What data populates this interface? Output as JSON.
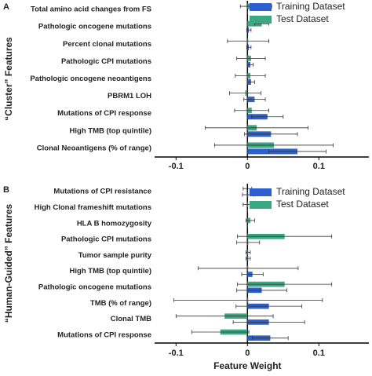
{
  "chart_data": [
    {
      "type": "bar",
      "orientation": "horizontal",
      "panel": "A",
      "ylabel": "“Cluster” Features",
      "categories": [
        "Total amino acid changes from FS",
        "Pathologic oncogene mutations",
        "Percent clonal mutations",
        "Pathologic CPI mutations",
        "Pathologic oncogene neoantigens",
        "PBRM1 LOH",
        "Mutations of CPI response",
        "High TMB (top quintile)",
        "Clonal Neoantigens (% of range)"
      ],
      "series": [
        {
          "name": "Training Dataset",
          "color": "#2c5fd0",
          "values": [
            0,
            0.002,
            0.002,
            0.004,
            0.005,
            0.01,
            0.028,
            0.033,
            0.07
          ],
          "errors": [
            0,
            0.003,
            0.003,
            0.004,
            0.005,
            0.015,
            0.022,
            0.037,
            0.04
          ]
        },
        {
          "name": "Test Dataset",
          "color": "#3aa882",
          "values": [
            0.012,
            0.02,
            0.001,
            0.005,
            0.004,
            -0.003,
            0.006,
            0.013,
            0.037
          ],
          "errors": [
            0.022,
            0.01,
            0.029,
            0.02,
            0.021,
            0.022,
            0.024,
            0.072,
            0.083
          ]
        }
      ],
      "xlim": [
        -0.13,
        0.17
      ],
      "xticks": [
        -0.1,
        0,
        0.1
      ],
      "legend": "top-right"
    },
    {
      "type": "bar",
      "orientation": "horizontal",
      "panel": "B",
      "ylabel": "“Human-Guided” Features",
      "xlabel": "Feature Weight",
      "categories": [
        "Mutations of CPI resistance",
        "High Clonal frameshift mutations",
        "HLA B homozygosity",
        "Pathologic CPI mutations",
        "Tumor sample purity",
        "High TMB (top quintile)",
        "Pathologic oncogene mutations",
        "TMB (% of range)",
        "Clonal TMB",
        "Mutations of CPI response"
      ],
      "series": [
        {
          "name": "Training Dataset",
          "color": "#2c5fd0",
          "values": [
            0.001,
            0,
            0,
            0.001,
            0.001,
            0.007,
            0.02,
            0.03,
            0.03,
            0.032
          ],
          "errors": [
            0.008,
            0,
            0,
            0.016,
            0.003,
            0.015,
            0.035,
            0.046,
            0.05,
            0.025
          ]
        },
        {
          "name": "Test Dataset",
          "color": "#3aa882",
          "values": [
            0,
            0.001,
            0.004,
            0.052,
            0.001,
            0.001,
            0.052,
            0.001,
            -0.032,
            -0.038
          ],
          "errors": [
            0.006,
            0.007,
            0.006,
            0.066,
            0.003,
            0.07,
            0.066,
            0.104,
            0.068,
            0.04
          ]
        }
      ],
      "xlim": [
        -0.13,
        0.17
      ],
      "xticks": [
        -0.1,
        0,
        0.1
      ],
      "legend": "top-right"
    }
  ]
}
